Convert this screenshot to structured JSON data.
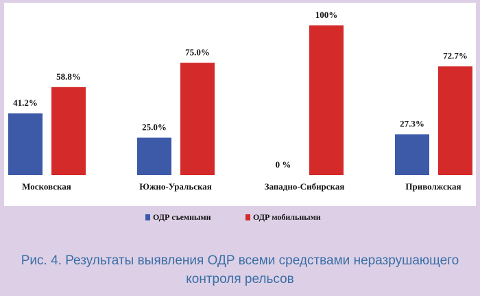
{
  "chart_data": {
    "type": "bar",
    "title": "Рис. 4. Результаты выявления ОДР всеми средствами неразрушающего контроля рельсов",
    "categories": [
      "Московская",
      "Южно-Уральская",
      "Западно-Сибирская",
      "Приволжская"
    ],
    "series": [
      {
        "name": "ОДР съемными",
        "color": "#3d5aa8",
        "values": [
          41.2,
          25.0,
          0,
          27.3
        ],
        "value_labels": [
          "41.2%",
          "25.0%",
          "0 %",
          "27.3%"
        ]
      },
      {
        "name": "ОДР мобильными",
        "color": "#d42a2a",
        "values": [
          58.8,
          75.0,
          100,
          72.7
        ],
        "value_labels": [
          "58.8%",
          "75.0%",
          "100%",
          "72.7%"
        ]
      }
    ]
  }
}
